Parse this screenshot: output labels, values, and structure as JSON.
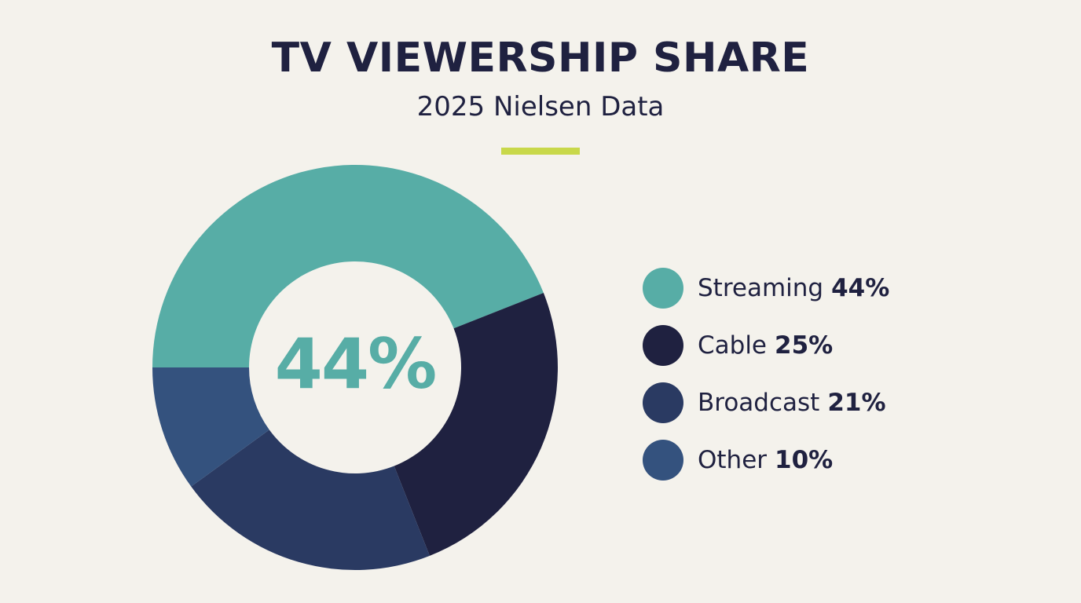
{
  "header": {
    "title": "TV VIEWERSHIP SHARE",
    "subtitle": "2025 Nielsen Data",
    "accent_color": "#c8d84a"
  },
  "center_label": "44%",
  "legend": [
    {
      "label": "Streaming",
      "value": "44%",
      "color": "#57ada6"
    },
    {
      "label": "Cable",
      "value": "25%",
      "color": "#1f2140"
    },
    {
      "label": "Broadcast",
      "value": "21%",
      "color": "#2a3a62"
    },
    {
      "label": "Other",
      "value": "10%",
      "color": "#34527e"
    }
  ],
  "chart_data": {
    "type": "pie",
    "variant": "donut",
    "title": "TV VIEWERSHIP SHARE",
    "subtitle": "2025 Nielsen Data",
    "categories": [
      "Streaming",
      "Cable",
      "Broadcast",
      "Other"
    ],
    "values": [
      44,
      25,
      21,
      10
    ],
    "unit": "%",
    "colors": [
      "#57ada6",
      "#1f2140",
      "#2a3a62",
      "#34527e"
    ],
    "center_annotation": "44%",
    "legend_position": "right"
  }
}
